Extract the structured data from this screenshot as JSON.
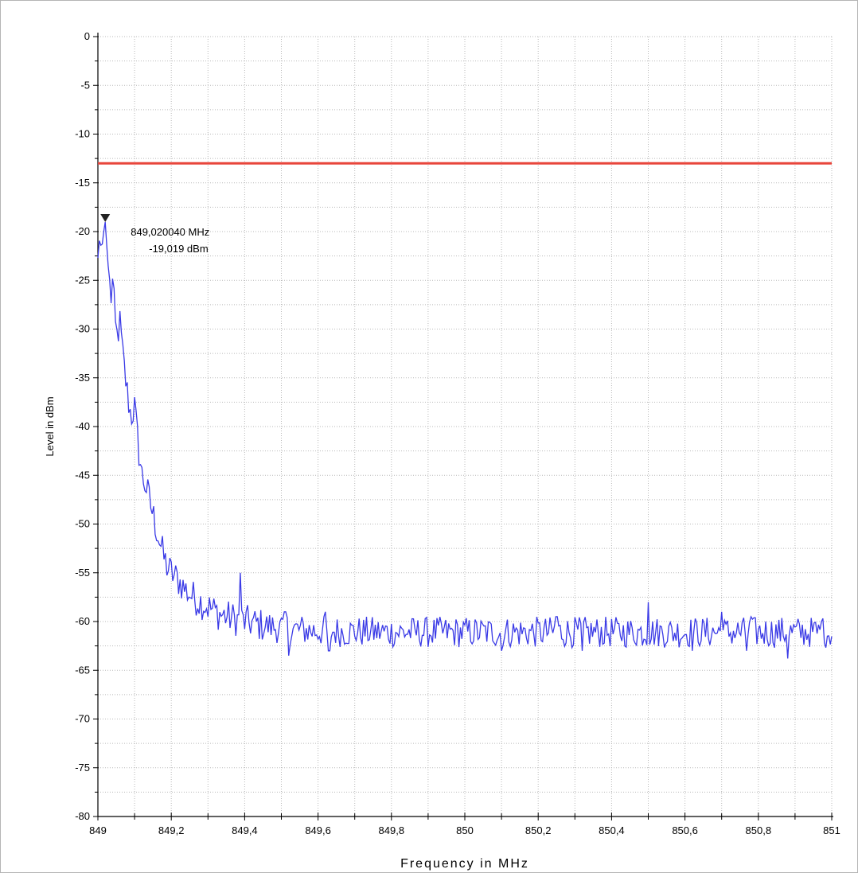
{
  "chart_data": {
    "type": "line",
    "xlabel": "Frequency in MHz",
    "ylabel": "Level in dBm",
    "xlim": [
      849,
      851
    ],
    "ylim": [
      -80,
      0
    ],
    "x_ticks": [
      "849",
      "849,2",
      "849,4",
      "849,6",
      "849,8",
      "850",
      "850,2",
      "850,4",
      "850,6",
      "850,8",
      "851"
    ],
    "y_ticks": [
      "0",
      "-5",
      "-10",
      "-15",
      "-20",
      "-25",
      "-30",
      "-35",
      "-40",
      "-45",
      "-50",
      "-55",
      "-60",
      "-65",
      "-70",
      "-75",
      "-80"
    ],
    "x_tick_values": [
      849,
      849.2,
      849.4,
      849.6,
      849.8,
      850,
      850.2,
      850.4,
      850.6,
      850.8,
      851
    ],
    "y_tick_values": [
      0,
      -5,
      -10,
      -15,
      -20,
      -25,
      -30,
      -35,
      -40,
      -45,
      -50,
      -55,
      -60,
      -65,
      -70,
      -75,
      -80
    ],
    "grid": true,
    "limit_line": {
      "value": -13,
      "color": "#e8463c"
    },
    "marker": {
      "x": 849.02004,
      "y": -19.019,
      "label_freq": "849,020040 MHz",
      "label_level": "-19,019 dBm"
    },
    "series": [
      {
        "color": "#3a3ae6",
        "anchors": [
          [
            849.0,
            -22.7
          ],
          [
            849.005,
            -20.5
          ],
          [
            849.01,
            -22.0
          ],
          [
            849.015,
            -20.2
          ],
          [
            849.02004,
            -19.02
          ],
          [
            849.025,
            -22.0
          ],
          [
            849.03,
            -24.5
          ],
          [
            849.035,
            -27.0
          ],
          [
            849.04,
            -25.3
          ],
          [
            849.05,
            -31.0
          ],
          [
            849.06,
            -29.5
          ],
          [
            849.07,
            -33.5
          ],
          [
            849.08,
            -36.5
          ],
          [
            849.09,
            -39.0
          ],
          [
            849.1,
            -38.0
          ],
          [
            849.11,
            -42.0
          ],
          [
            849.12,
            -45.0
          ],
          [
            849.13,
            -46.0
          ],
          [
            849.14,
            -47.5
          ],
          [
            849.15,
            -49.0
          ],
          [
            849.16,
            -50.5
          ],
          [
            849.17,
            -52.0
          ],
          [
            849.18,
            -53.5
          ],
          [
            849.19,
            -54.5
          ],
          [
            849.2,
            -55.0
          ],
          [
            849.22,
            -55.8
          ],
          [
            849.24,
            -56.8
          ],
          [
            849.26,
            -57.5
          ],
          [
            849.28,
            -58.0
          ],
          [
            849.3,
            -58.5
          ],
          [
            849.33,
            -59.2
          ],
          [
            849.36,
            -59.6
          ],
          [
            849.4,
            -60.0
          ],
          [
            849.45,
            -60.4
          ],
          [
            849.5,
            -60.7
          ],
          [
            849.6,
            -61.0
          ],
          [
            849.8,
            -61.1
          ],
          [
            850.0,
            -61.1
          ],
          [
            850.5,
            -61.1
          ],
          [
            851.0,
            -61.1
          ]
        ],
        "noise_amplitude_db": 1.6,
        "spikes": [
          [
            849.39,
            -55.0
          ],
          [
            849.51,
            -59.0
          ],
          [
            849.62,
            -59.0
          ],
          [
            850.1,
            -56.8
          ],
          [
            850.25,
            -59.5
          ],
          [
            850.5,
            -58.0
          ],
          [
            850.7,
            -59.0
          ],
          [
            850.78,
            -59.5
          ],
          [
            850.97,
            -60.0
          ]
        ],
        "dips": [
          [
            849.52,
            -63.5
          ],
          [
            849.63,
            -63.0
          ],
          [
            850.1,
            -63.0
          ],
          [
            850.32,
            -63.0
          ],
          [
            850.62,
            -63.0
          ],
          [
            850.77,
            -63.0
          ],
          [
            850.88,
            -63.8
          ]
        ]
      }
    ]
  }
}
